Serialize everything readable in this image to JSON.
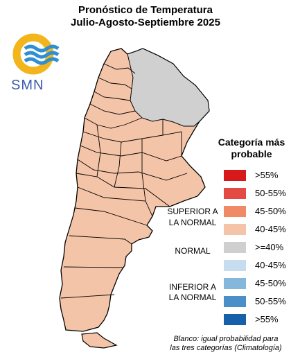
{
  "title_line1": "Pronóstico de Temperatura",
  "title_line2": "Julio-Agosto-Septiembre 2025",
  "logo_text": "SMN",
  "legend": {
    "title_line1": "Categoría más",
    "title_line2": "probable",
    "items": [
      {
        "label": ">55%",
        "color": "#d7191c"
      },
      {
        "label": "50-55%",
        "color": "#e34a43"
      },
      {
        "label": "45-50%",
        "color": "#f08a66"
      },
      {
        "label": "40-45%",
        "color": "#f4c4a8"
      },
      {
        "label": ">=40%",
        "color": "#cfcfcf"
      },
      {
        "label": "40-45%",
        "color": "#c6ddf0"
      },
      {
        "label": "45-50%",
        "color": "#85b7dc"
      },
      {
        "label": "50-55%",
        "color": "#4a8fc8"
      },
      {
        "label": ">55%",
        "color": "#1560a8"
      }
    ]
  },
  "categories": {
    "superior_1": "SUPERIOR A",
    "superior_2": "LA NORMAL",
    "normal": "NORMAL",
    "inferior_1": "INFERIOR A",
    "inferior_2": "LA NORMAL"
  },
  "note_line1": "Blanco: igual probabilidad para",
  "note_line2": "las tres categorías (Climatología)",
  "colors": {
    "fill_warm": "#f4c4a8",
    "fill_normal": "#d0d0d0",
    "logo_yellow": "#f2b51c",
    "logo_blue": "#2f8fd3"
  }
}
